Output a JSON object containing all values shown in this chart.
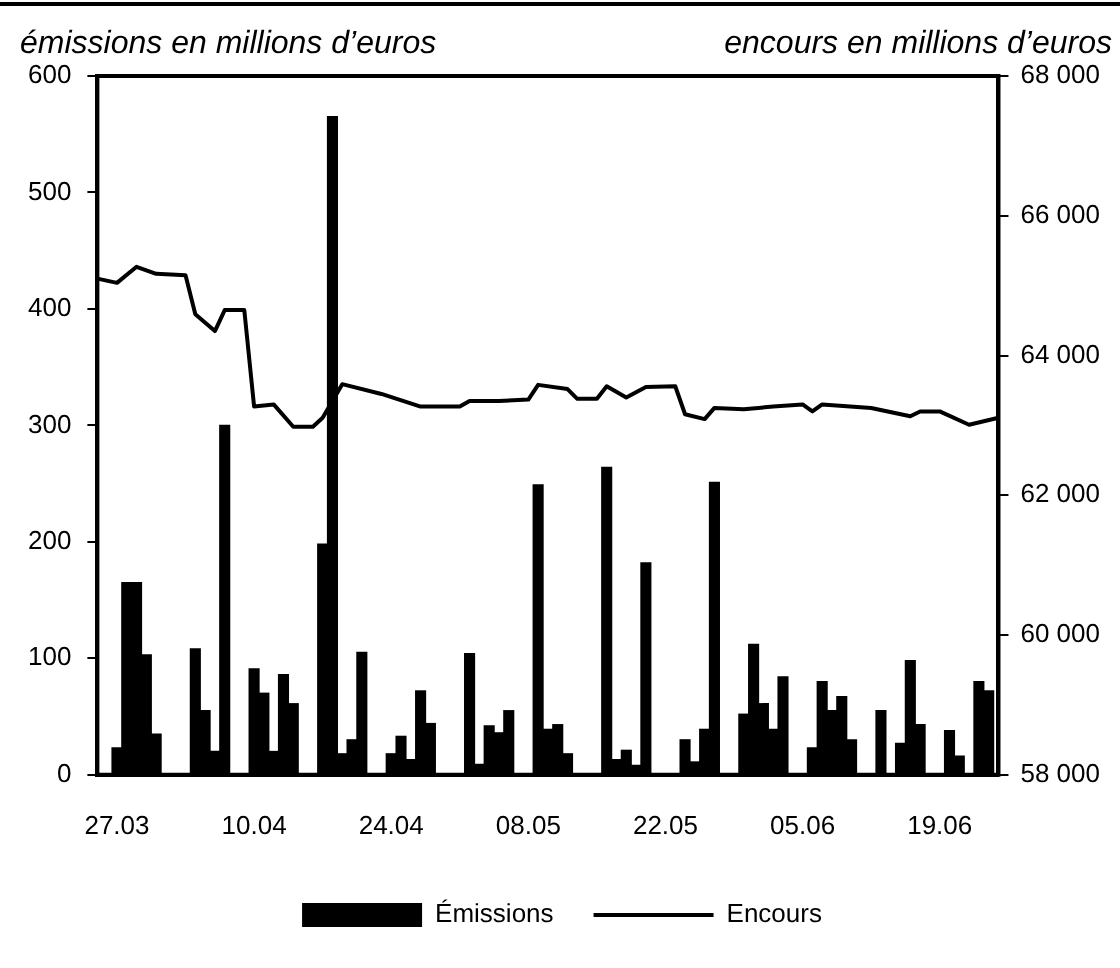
{
  "chart_data": {
    "type": "bar",
    "ylabel": "émissions en millions d’euros",
    "y2label": "encours en millions d’euros",
    "legend": "bottom",
    "marker": "none",
    "line_style": "solid",
    "xlim": [
      "--03-25",
      "--06-25"
    ],
    "xticks": [
      {
        "value": "--03-27",
        "label": "27.03"
      },
      {
        "value": "--04-10",
        "label": "10.04"
      },
      {
        "value": "--04-24",
        "label": "24.04"
      },
      {
        "value": "--05-08",
        "label": "08.05"
      },
      {
        "value": "--05-22",
        "label": "22.05"
      },
      {
        "value": "--06-05",
        "label": "05.06"
      },
      {
        "value": "--06-19",
        "label": "19.06"
      }
    ],
    "ylim": [
      0,
      600
    ],
    "yticks": [
      0,
      100,
      200,
      300,
      400,
      500,
      600
    ],
    "y2lim": [
      58000,
      68000
    ],
    "y2ticks": [
      {
        "value": 58000,
        "label": "58 000"
      },
      {
        "value": 60000,
        "label": "60 000"
      },
      {
        "value": 62000,
        "label": "62 000"
      },
      {
        "value": 64000,
        "label": "64 000"
      },
      {
        "value": 66000,
        "label": "66 000"
      },
      {
        "value": 68000,
        "label": "68 000"
      }
    ],
    "series": [
      {
        "name": "Émissions",
        "color": "#000000",
        "x": [
          "--03-27",
          "--03-28",
          "--03-29",
          "--03-30",
          "--03-31",
          "--04-04",
          "--04-05",
          "--04-06",
          "--04-07",
          "--04-10",
          "--04-11",
          "--04-12",
          "--04-13",
          "--04-14",
          "--04-17",
          "--04-18",
          "--04-19",
          "--04-20",
          "--04-21",
          "--04-24",
          "--04-25",
          "--04-26",
          "--04-27",
          "--04-28",
          "--05-02",
          "--05-03",
          "--05-04",
          "--05-05",
          "--05-06",
          "--05-09",
          "--05-10",
          "--05-11",
          "--05-12",
          "--05-16",
          "--05-17",
          "--05-18",
          "--05-19",
          "--05-20",
          "--05-24",
          "--05-25",
          "--05-26",
          "--05-27",
          "--05-30",
          "--05-31",
          "--06-01",
          "--06-02",
          "--06-03",
          "--06-06",
          "--06-07",
          "--06-08",
          "--06-09",
          "--06-10",
          "--06-13",
          "--06-15",
          "--06-16",
          "--06-17",
          "--06-20",
          "--06-21",
          "--06-23",
          "--06-24"
        ],
        "values": [
          23,
          165,
          165,
          103,
          35,
          108,
          55,
          20,
          300,
          91,
          70,
          20,
          86,
          61,
          198,
          565,
          18,
          30,
          105,
          18,
          33,
          13,
          72,
          44,
          104,
          9,
          42,
          36,
          55,
          249,
          39,
          43,
          18,
          264,
          13,
          21,
          8,
          182,
          30,
          11,
          39,
          251,
          52,
          112,
          61,
          39,
          84,
          23,
          80,
          55,
          67,
          30,
          55,
          27,
          98,
          43,
          38,
          16,
          80,
          72
        ]
      },
      {
        "name": "Encours",
        "type": "line",
        "axis": "y2",
        "color": "#000000",
        "x": [
          "--03-25",
          "--03-27",
          "--03-29",
          "--03-31",
          "--04-03",
          "--04-04",
          "--04-06",
          "--04-07",
          "--04-09",
          "--04-10",
          "--04-12",
          "--04-14",
          "--04-16",
          "--04-17",
          "--04-19",
          "--04-23",
          "--04-27",
          "--05-01",
          "--05-02",
          "--05-05",
          "--05-08",
          "--05-09",
          "--05-12",
          "--05-13",
          "--05-15",
          "--05-16",
          "--05-18",
          "--05-20",
          "--05-23",
          "--05-24",
          "--05-26",
          "--05-27",
          "--05-30",
          "--06-02",
          "--06-05",
          "--06-06",
          "--06-07",
          "--06-12",
          "--06-16",
          "--06-17",
          "--06-19",
          "--06-22",
          "--06-25"
        ],
        "values": [
          65100,
          65040,
          65270,
          65170,
          65150,
          64590,
          64350,
          64650,
          64650,
          63270,
          63300,
          62980,
          62980,
          63110,
          63590,
          63450,
          63270,
          63270,
          63350,
          63350,
          63370,
          63580,
          63520,
          63380,
          63380,
          63560,
          63400,
          63550,
          63560,
          63160,
          63090,
          63250,
          63230,
          63270,
          63300,
          63200,
          63300,
          63250,
          63130,
          63200,
          63200,
          63010,
          63110
        ]
      }
    ]
  }
}
